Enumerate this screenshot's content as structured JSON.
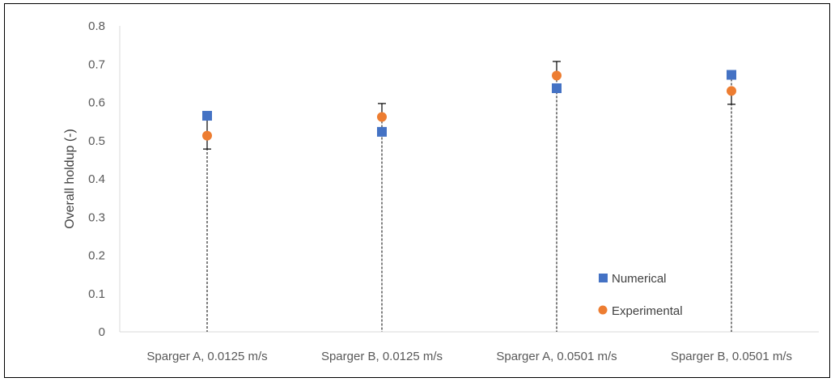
{
  "chart_data": {
    "type": "scatter",
    "title": "",
    "xlabel": "",
    "ylabel": "Overall holdup (-)",
    "ylim": [
      0,
      0.8
    ],
    "y_ticks": [
      "0",
      "0.1",
      "0.2",
      "0.3",
      "0.4",
      "0.5",
      "0.6",
      "0.7",
      "0.8"
    ],
    "categories": [
      "Sparger A, 0.0125 m/s",
      "Sparger B, 0.0125 m/s",
      "Sparger A, 0.0501 m/s",
      "Sparger B, 0.0501 m/s"
    ],
    "series": [
      {
        "name": "Numerical",
        "marker": "square",
        "color": "#4472C4",
        "values": [
          0.565,
          0.523,
          0.637,
          0.672
        ]
      },
      {
        "name": "Experimental",
        "marker": "circle",
        "color": "#ED7D31",
        "values": [
          0.513,
          0.562,
          0.67,
          0.63
        ],
        "error_minus": [
          0.035,
          0.0,
          0.0,
          0.035
        ],
        "error_plus": [
          0.045,
          0.035,
          0.037,
          0.0
        ]
      }
    ],
    "drop_lines": true,
    "grid": false,
    "legend_position": "bottom-right"
  }
}
